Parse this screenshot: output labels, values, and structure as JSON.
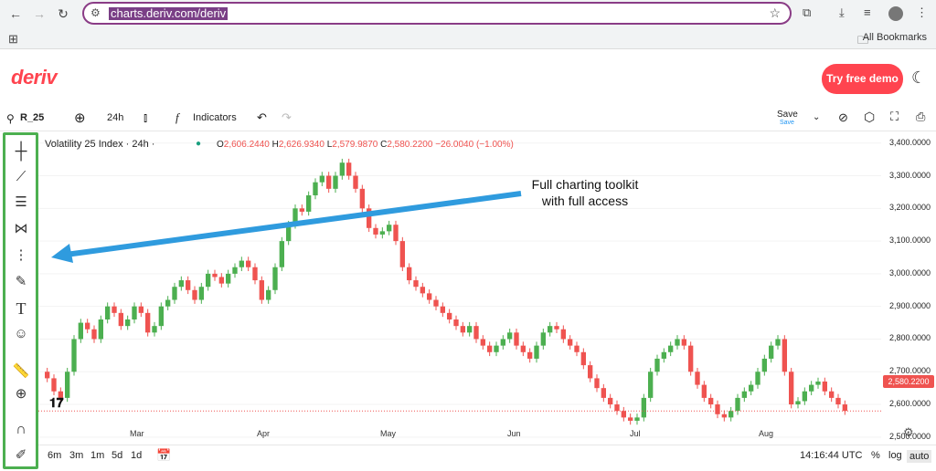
{
  "browser": {
    "url": "charts.deriv.com/deriv",
    "bookmarks_label": "All Bookmarks"
  },
  "site": {
    "logo_text": "deriv",
    "cta_label": "Try free demo"
  },
  "toolbar": {
    "symbol": "R_25",
    "interval": "24h",
    "indicators_label": "Indicators",
    "save_label": "Save",
    "save_sub": "Save"
  },
  "legend": {
    "title": "Volatility 25 Index · 24h ·",
    "o_label": "O",
    "o_value": "2,606.2440",
    "h_label": "H",
    "h_value": "2,626.9340",
    "l_label": "L",
    "l_value": "2,579.9870",
    "c_label": "C",
    "c_value": "2,580.2200",
    "change": "−26.0040 (−1.00%)"
  },
  "annotation": {
    "line1": "Full charting toolkit",
    "line2": "with full access"
  },
  "price_tag": "2,580.2200",
  "colors": {
    "brand": "#ff444f",
    "up": "#4caf50",
    "down": "#ef5350",
    "arrow": "#2f9bde",
    "highlight": "#4caf50"
  },
  "footer": {
    "ranges": [
      "6m",
      "3m",
      "1m",
      "5d",
      "1d"
    ],
    "time": "14:16:44 UTC",
    "percent": "%",
    "log": "log",
    "auto": "auto"
  },
  "chart_data": {
    "type": "candlestick",
    "title": "Volatility 25 Index · 24h ·",
    "y_ticks": [
      "3,400.0000",
      "3,300.0000",
      "3,200.0000",
      "3,100.0000",
      "3,000.0000",
      "2,900.0000",
      "2,800.0000",
      "2,700.0000",
      "2,600.0000",
      "2,500.0000"
    ],
    "x_ticks": [
      "Mar",
      "Apr",
      "May",
      "Jun",
      "Jul",
      "Aug"
    ],
    "ylim": [
      2480,
      3430
    ],
    "close_approx": [
      2680,
      2640,
      2620,
      2700,
      2800,
      2850,
      2830,
      2800,
      2860,
      2900,
      2880,
      2840,
      2860,
      2900,
      2880,
      2820,
      2840,
      2900,
      2920,
      2960,
      2980,
      2950,
      2920,
      2960,
      3000,
      2990,
      2970,
      3000,
      3020,
      3040,
      3020,
      2980,
      2920,
      2950,
      3020,
      3100,
      3150,
      3200,
      3190,
      3240,
      3280,
      3300,
      3260,
      3300,
      3340,
      3300,
      3260,
      3200,
      3140,
      3120,
      3130,
      3150,
      3100,
      3020,
      2980,
      2960,
      2940,
      2920,
      2900,
      2880,
      2860,
      2840,
      2820,
      2840,
      2800,
      2780,
      2760,
      2780,
      2800,
      2820,
      2780,
      2760,
      2740,
      2780,
      2820,
      2840,
      2830,
      2800,
      2780,
      2760,
      2720,
      2680,
      2650,
      2620,
      2600,
      2580,
      2560,
      2550,
      2560,
      2620,
      2700,
      2740,
      2760,
      2780,
      2800,
      2780,
      2700,
      2660,
      2620,
      2600,
      2570,
      2560,
      2580,
      2620,
      2640,
      2660,
      2700,
      2740,
      2780,
      2800,
      2700,
      2600,
      2610,
      2640,
      2660,
      2670,
      2640,
      2620,
      2600,
      2580
    ]
  }
}
